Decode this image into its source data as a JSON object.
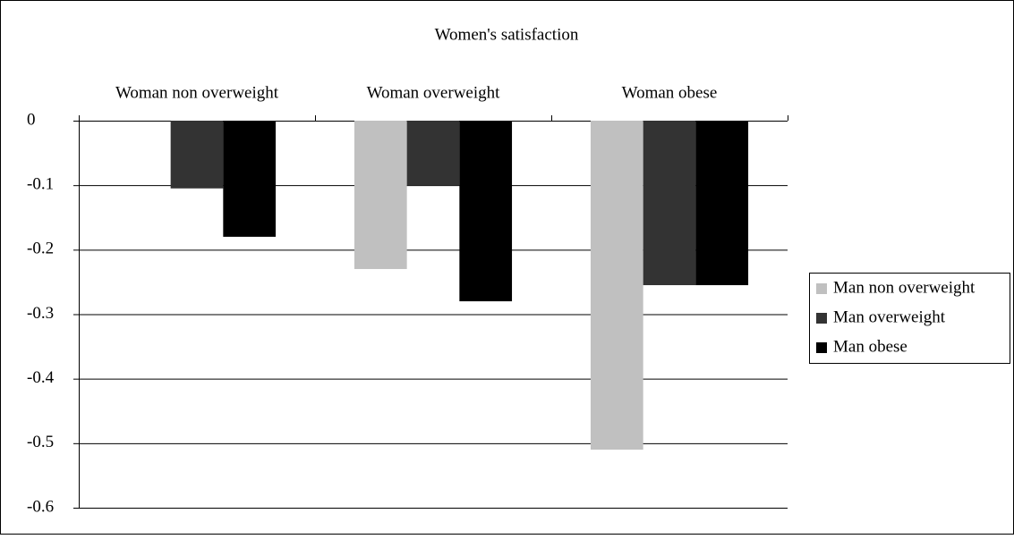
{
  "chart_data": {
    "type": "bar",
    "title": "Women's satisfaction",
    "categories": [
      "Woman non overweight",
      "Woman overweight",
      "Woman obese"
    ],
    "series": [
      {
        "name": "Man non overweight",
        "color": "#c0c0c0",
        "values": [
          0,
          -0.23,
          -0.51
        ]
      },
      {
        "name": "Man overweight",
        "color": "#333333",
        "values": [
          -0.105,
          -0.1,
          -0.255
        ]
      },
      {
        "name": "Man obese",
        "color": "#000000",
        "values": [
          -0.18,
          -0.28,
          -0.255
        ]
      }
    ],
    "ylim": [
      -0.6,
      0
    ],
    "yticks": [
      0,
      -0.1,
      -0.2,
      -0.3,
      -0.4,
      -0.5,
      -0.6
    ],
    "grid": true,
    "legend": "right"
  }
}
